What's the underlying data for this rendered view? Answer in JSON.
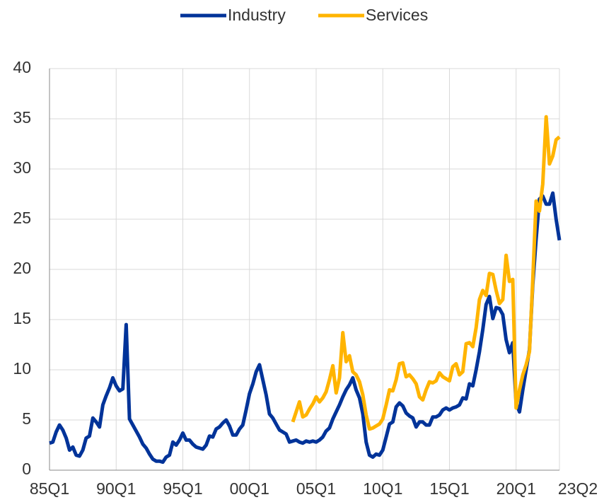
{
  "chart_data": {
    "type": "line",
    "categories": [
      "85Q1",
      null,
      null,
      null,
      null,
      null,
      null,
      null,
      null,
      null,
      null,
      null,
      null,
      null,
      null,
      null,
      null,
      null,
      null,
      null,
      "90Q1",
      null,
      null,
      null,
      null,
      null,
      null,
      null,
      null,
      null,
      null,
      null,
      null,
      null,
      null,
      null,
      null,
      null,
      null,
      null,
      "95Q1",
      null,
      null,
      null,
      null,
      null,
      null,
      null,
      null,
      null,
      null,
      null,
      null,
      null,
      null,
      null,
      null,
      null,
      null,
      null,
      "00Q1",
      null,
      null,
      null,
      null,
      null,
      null,
      null,
      null,
      null,
      null,
      null,
      null,
      null,
      null,
      null,
      null,
      null,
      null,
      null,
      "05Q1",
      null,
      null,
      null,
      null,
      null,
      null,
      null,
      null,
      null,
      null,
      null,
      null,
      null,
      null,
      null,
      null,
      null,
      null,
      null,
      "10Q1",
      null,
      null,
      null,
      null,
      null,
      null,
      null,
      null,
      null,
      null,
      null,
      null,
      null,
      null,
      null,
      null,
      null,
      null,
      null,
      "15Q1",
      null,
      null,
      null,
      null,
      null,
      null,
      null,
      null,
      null,
      null,
      null,
      null,
      null,
      null,
      null,
      null,
      null,
      null,
      null,
      "20Q1",
      null,
      null,
      null,
      null,
      null,
      null,
      null,
      null,
      null,
      null,
      null,
      null,
      "23Q2"
    ],
    "series": [
      {
        "name": "Industry",
        "color": "#003399",
        "values": [
          2.7,
          2.8,
          3.8,
          4.5,
          4.0,
          3.2,
          2.0,
          2.3,
          1.5,
          1.4,
          2.0,
          3.2,
          3.4,
          5.2,
          4.8,
          4.3,
          6.5,
          7.4,
          8.2,
          9.2,
          8.4,
          7.9,
          8.1,
          14.5,
          5.1,
          4.5,
          3.9,
          3.3,
          2.6,
          2.2,
          1.6,
          1.1,
          0.9,
          0.9,
          0.8,
          1.3,
          1.5,
          2.8,
          2.5,
          3.0,
          3.7,
          3.0,
          3.0,
          2.6,
          2.3,
          2.2,
          2.1,
          2.5,
          3.4,
          3.3,
          4.1,
          4.3,
          4.7,
          5.0,
          4.4,
          3.5,
          3.5,
          4.1,
          4.5,
          6.0,
          7.6,
          8.6,
          9.8,
          10.5,
          9.0,
          7.5,
          5.6,
          5.2,
          4.6,
          4.0,
          3.8,
          3.6,
          2.8,
          2.9,
          3.0,
          2.8,
          2.7,
          2.9,
          2.8,
          2.9,
          2.8,
          3.0,
          3.3,
          3.9,
          4.2,
          5.1,
          5.8,
          6.5,
          7.3,
          8.0,
          8.5,
          9.2,
          8.0,
          7.2,
          5.6,
          2.8,
          1.5,
          1.3,
          1.6,
          1.5,
          2.0,
          3.3,
          4.6,
          4.8,
          6.3,
          6.7,
          6.4,
          5.7,
          5.4,
          5.2,
          4.3,
          4.8,
          4.8,
          4.5,
          4.5,
          5.3,
          5.3,
          5.5,
          6.0,
          6.2,
          6.0,
          6.2,
          6.3,
          6.5,
          7.2,
          7.1,
          8.6,
          8.4,
          10.0,
          11.8,
          14.0,
          16.5,
          17.3,
          15.1,
          16.2,
          16.1,
          15.5,
          13.0,
          11.7,
          12.7,
          6.7,
          5.8,
          8.0,
          10.0,
          12.0,
          18.5,
          23.0,
          27.0,
          27.3,
          26.5,
          26.5,
          27.6,
          25.0,
          22.9
        ]
      },
      {
        "name": "Services",
        "color": "#FFB400",
        "values": [
          null,
          null,
          null,
          null,
          null,
          null,
          null,
          null,
          null,
          null,
          null,
          null,
          null,
          null,
          null,
          null,
          null,
          null,
          null,
          null,
          null,
          null,
          null,
          null,
          null,
          null,
          null,
          null,
          null,
          null,
          null,
          null,
          null,
          null,
          null,
          null,
          null,
          null,
          null,
          null,
          null,
          null,
          null,
          null,
          null,
          null,
          null,
          null,
          null,
          null,
          null,
          null,
          null,
          null,
          null,
          null,
          null,
          null,
          null,
          null,
          null,
          null,
          null,
          null,
          null,
          null,
          null,
          null,
          null,
          null,
          null,
          null,
          null,
          4.8,
          5.8,
          6.8,
          5.3,
          5.5,
          6.1,
          6.6,
          7.3,
          6.8,
          7.2,
          7.8,
          9.0,
          10.4,
          7.7,
          9.2,
          13.7,
          10.8,
          11.4,
          9.8,
          9.5,
          8.8,
          7.5,
          5.5,
          4.1,
          4.2,
          4.4,
          4.6,
          5.1,
          6.5,
          8.0,
          7.9,
          9.0,
          10.6,
          10.7,
          9.3,
          9.5,
          9.1,
          8.6,
          7.3,
          7.0,
          8.0,
          8.8,
          8.7,
          8.9,
          9.7,
          9.3,
          9.1,
          8.9,
          10.3,
          10.6,
          9.5,
          9.8,
          12.6,
          12.7,
          12.3,
          14.2,
          17.0,
          17.9,
          17.4,
          19.6,
          19.5,
          17.9,
          16.6,
          17.0,
          21.4,
          18.8,
          19.0,
          6.2,
          8.0,
          9.5,
          10.5,
          11.8,
          19.0,
          26.8,
          25.8,
          28.5,
          35.2,
          30.5,
          31.3,
          32.9,
          33.2
        ]
      }
    ],
    "ylim": [
      0,
      40
    ],
    "yticks": [
      0,
      5,
      10,
      15,
      20,
      25,
      30,
      35,
      40
    ],
    "grid": true,
    "legend": "top"
  }
}
